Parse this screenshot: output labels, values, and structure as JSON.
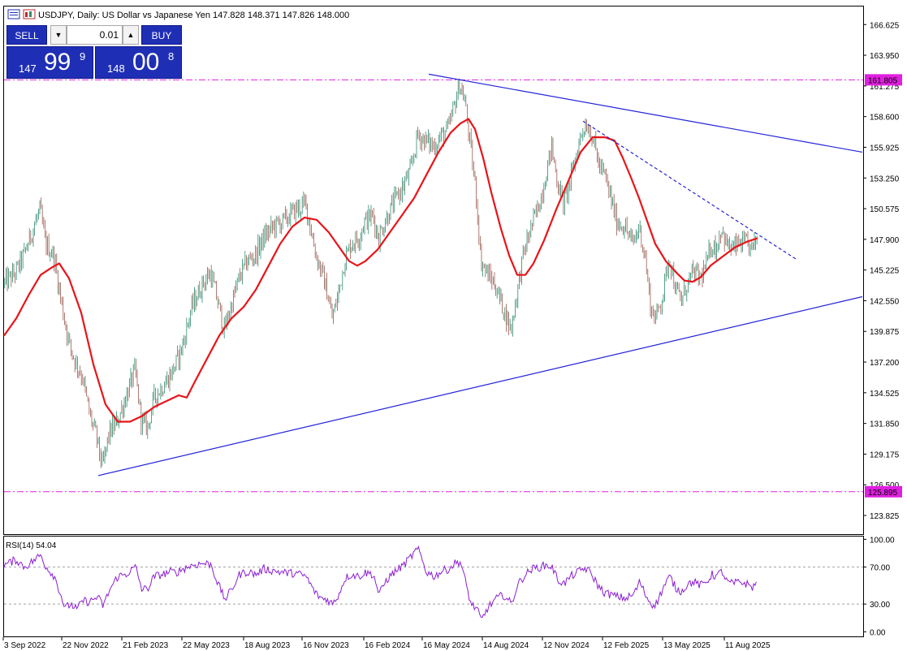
{
  "header": {
    "title": "USDJPY, Daily:  US Dollar vs Japanese Yen  147.828 148.371 147.826 148.000"
  },
  "trade_panel": {
    "sell_label": "SELL",
    "buy_label": "BUY",
    "lot": "0.01",
    "bid_prefix": "147",
    "bid_big": "99",
    "bid_sup": "9",
    "ask_prefix": "148",
    "ask_big": "00",
    "ask_sup": "8"
  },
  "colors": {
    "bull": "#2e8b6e",
    "bear": "#9a5a50",
    "ma": "#e8141a",
    "trend": "#2323d9",
    "level": "#e020e0",
    "rsi": "#8c1fd1"
  },
  "chart_data": [
    {
      "type": "candlestick",
      "symbol": "USDJPY",
      "timeframe": "Daily",
      "description": "US Dollar vs Japanese Yen",
      "last_ohlc": [
        147.828,
        148.371,
        147.826,
        148.0
      ],
      "ylim": [
        122.2,
        168.2
      ],
      "y_ticks": [
        "166.625",
        "163.950",
        "161.275",
        "158.600",
        "155.925",
        "153.250",
        "150.575",
        "147.900",
        "145.225",
        "142.550",
        "139.875",
        "137.200",
        "134.525",
        "131.850",
        "129.175",
        "126.500",
        "123.825"
      ],
      "x_ticks": [
        "3 Sep 2022",
        "22 Nov 2022",
        "21 Feb 2023",
        "22 May 2023",
        "18 Aug 2023",
        "16 Nov 2023",
        "16 Feb 2024",
        "16 May 2024",
        "14 Aug 2024",
        "12 Nov 2024",
        "12 Feb 2025",
        "13 May 2025",
        "11 Aug 2025"
      ],
      "price_path": [
        [
          0,
          144.0
        ],
        [
          15,
          145.0
        ],
        [
          25,
          146.5
        ],
        [
          35,
          148.5
        ],
        [
          45,
          150.5
        ],
        [
          52,
          147.5
        ],
        [
          62,
          146.5
        ],
        [
          70,
          143.0
        ],
        [
          75,
          141.0
        ],
        [
          82,
          138.5
        ],
        [
          90,
          137.0
        ],
        [
          97,
          136.0
        ],
        [
          105,
          133.0
        ],
        [
          115,
          130.5
        ],
        [
          122,
          128.0
        ],
        [
          130,
          131.0
        ],
        [
          140,
          132.0
        ],
        [
          150,
          134.0
        ],
        [
          162,
          136.5
        ],
        [
          170,
          132.0
        ],
        [
          178,
          131.5
        ],
        [
          185,
          134.0
        ],
        [
          195,
          135.0
        ],
        [
          205,
          136.0
        ],
        [
          212,
          137.0
        ],
        [
          220,
          138.5
        ],
        [
          232,
          142.0
        ],
        [
          245,
          144.0
        ],
        [
          255,
          145.0
        ],
        [
          262,
          143.0
        ],
        [
          272,
          140.0
        ],
        [
          280,
          142.0
        ],
        [
          290,
          144.5
        ],
        [
          300,
          146.0
        ],
        [
          310,
          146.5
        ],
        [
          320,
          148.0
        ],
        [
          332,
          149.0
        ],
        [
          345,
          149.5
        ],
        [
          360,
          150.5
        ],
        [
          372,
          151.0
        ],
        [
          378,
          149.0
        ],
        [
          385,
          146.5
        ],
        [
          392,
          145.0
        ],
        [
          398,
          143.5
        ],
        [
          405,
          141.0
        ],
        [
          412,
          143.0
        ],
        [
          420,
          146.0
        ],
        [
          428,
          147.5
        ],
        [
          437,
          148.0
        ],
        [
          445,
          149.5
        ],
        [
          455,
          150.0
        ],
        [
          462,
          148.0
        ],
        [
          470,
          149.5
        ],
        [
          480,
          151.0
        ],
        [
          492,
          152.5
        ],
        [
          502,
          154.0
        ],
        [
          510,
          157.0
        ],
        [
          520,
          156.5
        ],
        [
          530,
          156.0
        ],
        [
          540,
          157.0
        ],
        [
          548,
          157.5
        ],
        [
          555,
          159.5
        ],
        [
          562,
          161.5
        ],
        [
          568,
          160.0
        ],
        [
          575,
          156.0
        ],
        [
          582,
          152.0
        ],
        [
          588,
          146.0
        ],
        [
          595,
          145.0
        ],
        [
          605,
          144.0
        ],
        [
          615,
          142.0
        ],
        [
          625,
          140.0
        ],
        [
          632,
          143.0
        ],
        [
          640,
          146.5
        ],
        [
          650,
          149.0
        ],
        [
          660,
          151.0
        ],
        [
          668,
          153.5
        ],
        [
          675,
          156.0
        ],
        [
          682,
          153.0
        ],
        [
          690,
          151.0
        ],
        [
          698,
          153.0
        ],
        [
          706,
          155.5
        ],
        [
          713,
          157.5
        ],
        [
          718,
          158.0
        ],
        [
          725,
          157.0
        ],
        [
          733,
          154.5
        ],
        [
          740,
          153.5
        ],
        [
          748,
          151.5
        ],
        [
          755,
          149.5
        ],
        [
          765,
          149.0
        ],
        [
          775,
          147.5
        ],
        [
          783,
          149.0
        ],
        [
          790,
          146.5
        ],
        [
          797,
          142.0
        ],
        [
          803,
          141.0
        ],
        [
          812,
          143.0
        ],
        [
          820,
          146.5
        ],
        [
          828,
          143.5
        ],
        [
          835,
          142.5
        ],
        [
          842,
          144.0
        ],
        [
          850,
          145.0
        ],
        [
          858,
          144.5
        ],
        [
          865,
          145.5
        ],
        [
          872,
          147.5
        ],
        [
          878,
          147.0
        ],
        [
          884,
          149.0
        ],
        [
          890,
          147.5
        ],
        [
          898,
          147.0
        ],
        [
          906,
          147.5
        ],
        [
          914,
          147.5
        ],
        [
          922,
          147.0
        ],
        [
          928,
          148.0
        ]
      ],
      "moving_average": [
        [
          0,
          139.5
        ],
        [
          15,
          141.0
        ],
        [
          30,
          143.0
        ],
        [
          45,
          144.8
        ],
        [
          60,
          145.5
        ],
        [
          68,
          145.8
        ],
        [
          80,
          144.5
        ],
        [
          95,
          141.5
        ],
        [
          110,
          137.0
        ],
        [
          125,
          133.5
        ],
        [
          140,
          132.0
        ],
        [
          155,
          132.0
        ],
        [
          170,
          132.5
        ],
        [
          185,
          133.3
        ],
        [
          200,
          133.8
        ],
        [
          215,
          134.3
        ],
        [
          225,
          134.1
        ],
        [
          235,
          135.5
        ],
        [
          250,
          137.5
        ],
        [
          265,
          139.5
        ],
        [
          280,
          141.0
        ],
        [
          295,
          142.0
        ],
        [
          310,
          143.5
        ],
        [
          325,
          145.5
        ],
        [
          340,
          147.5
        ],
        [
          355,
          149.0
        ],
        [
          370,
          149.8
        ],
        [
          385,
          149.6
        ],
        [
          400,
          148.5
        ],
        [
          415,
          147.0
        ],
        [
          425,
          146.0
        ],
        [
          435,
          145.6
        ],
        [
          445,
          146.0
        ],
        [
          460,
          147.0
        ],
        [
          475,
          148.5
        ],
        [
          490,
          150.0
        ],
        [
          505,
          151.5
        ],
        [
          520,
          153.5
        ],
        [
          535,
          155.5
        ],
        [
          550,
          157.2
        ],
        [
          562,
          158.0
        ],
        [
          572,
          158.4
        ],
        [
          580,
          157.5
        ],
        [
          590,
          155.0
        ],
        [
          600,
          152.0
        ],
        [
          612,
          148.8
        ],
        [
          622,
          146.5
        ],
        [
          632,
          144.8
        ],
        [
          642,
          144.8
        ],
        [
          652,
          145.8
        ],
        [
          665,
          147.8
        ],
        [
          680,
          150.5
        ],
        [
          695,
          153.0
        ],
        [
          710,
          155.5
        ],
        [
          725,
          156.8
        ],
        [
          740,
          156.8
        ],
        [
          752,
          156.5
        ],
        [
          762,
          155.0
        ],
        [
          772,
          153.3
        ],
        [
          782,
          151.5
        ],
        [
          792,
          149.5
        ],
        [
          802,
          147.5
        ],
        [
          815,
          146.0
        ],
        [
          828,
          145.0
        ],
        [
          838,
          144.3
        ],
        [
          848,
          144.2
        ],
        [
          858,
          144.6
        ],
        [
          870,
          145.6
        ],
        [
          885,
          146.4
        ],
        [
          900,
          147.2
        ],
        [
          915,
          147.7
        ],
        [
          928,
          148.0
        ]
      ],
      "levels": [
        161.805,
        125.895
      ],
      "level_labels": [
        "161.805",
        "125.895"
      ],
      "trendlines": [
        {
          "style": "solid",
          "points": [
            [
              528,
              162.3
            ],
            [
              1062,
              155.5
            ]
          ]
        },
        {
          "style": "solid",
          "points": [
            [
              121,
              127.3
            ],
            [
              1062,
              142.9
            ]
          ]
        },
        {
          "style": "dashed",
          "points": [
            [
              718,
              158.2
            ],
            [
              982,
              146.1
            ]
          ]
        }
      ]
    },
    {
      "type": "line",
      "title": "RSI(14) 54.04",
      "ylim": [
        -5,
        103
      ],
      "y_ticks": [
        "100.00",
        "70.00",
        "30.00",
        "0.00"
      ],
      "levels": [
        70,
        30
      ],
      "rsi_path": [
        [
          0,
          72
        ],
        [
          15,
          78
        ],
        [
          25,
          70
        ],
        [
          35,
          76
        ],
        [
          45,
          83
        ],
        [
          52,
          70
        ],
        [
          62,
          60
        ],
        [
          70,
          40
        ],
        [
          75,
          25
        ],
        [
          82,
          30
        ],
        [
          90,
          24
        ],
        [
          97,
          34
        ],
        [
          105,
          32
        ],
        [
          115,
          38
        ],
        [
          122,
          28
        ],
        [
          130,
          45
        ],
        [
          140,
          60
        ],
        [
          150,
          62
        ],
        [
          162,
          70
        ],
        [
          170,
          45
        ],
        [
          178,
          48
        ],
        [
          185,
          60
        ],
        [
          195,
          62
        ],
        [
          205,
          65
        ],
        [
          212,
          64
        ],
        [
          220,
          68
        ],
        [
          232,
          72
        ],
        [
          245,
          74
        ],
        [
          255,
          73
        ],
        [
          262,
          55
        ],
        [
          272,
          35
        ],
        [
          280,
          45
        ],
        [
          290,
          62
        ],
        [
          300,
          65
        ],
        [
          310,
          62
        ],
        [
          320,
          68
        ],
        [
          332,
          66
        ],
        [
          345,
          64
        ],
        [
          360,
          63
        ],
        [
          372,
          60
        ],
        [
          378,
          50
        ],
        [
          385,
          40
        ],
        [
          392,
          36
        ],
        [
          398,
          35
        ],
        [
          405,
          30
        ],
        [
          412,
          40
        ],
        [
          420,
          58
        ],
        [
          428,
          62
        ],
        [
          437,
          60
        ],
        [
          445,
          64
        ],
        [
          455,
          62
        ],
        [
          462,
          40
        ],
        [
          470,
          55
        ],
        [
          480,
          64
        ],
        [
          492,
          72
        ],
        [
          502,
          82
        ],
        [
          510,
          90
        ],
        [
          520,
          65
        ],
        [
          530,
          60
        ],
        [
          540,
          66
        ],
        [
          548,
          68
        ],
        [
          555,
          74
        ],
        [
          562,
          76
        ],
        [
          568,
          55
        ],
        [
          575,
          30
        ],
        [
          582,
          25
        ],
        [
          588,
          12
        ],
        [
          595,
          25
        ],
        [
          605,
          35
        ],
        [
          615,
          40
        ],
        [
          625,
          30
        ],
        [
          632,
          50
        ],
        [
          640,
          60
        ],
        [
          650,
          68
        ],
        [
          660,
          70
        ],
        [
          668,
          72
        ],
        [
          675,
          70
        ],
        [
          682,
          56
        ],
        [
          690,
          52
        ],
        [
          698,
          60
        ],
        [
          706,
          64
        ],
        [
          713,
          68
        ],
        [
          718,
          68
        ],
        [
          725,
          60
        ],
        [
          733,
          48
        ],
        [
          740,
          42
        ],
        [
          748,
          40
        ],
        [
          755,
          38
        ],
        [
          765,
          36
        ],
        [
          775,
          40
        ],
        [
          783,
          54
        ],
        [
          790,
          40
        ],
        [
          797,
          30
        ],
        [
          803,
          30
        ],
        [
          812,
          48
        ],
        [
          820,
          60
        ],
        [
          828,
          46
        ],
        [
          835,
          44
        ],
        [
          842,
          52
        ],
        [
          850,
          54
        ],
        [
          858,
          50
        ],
        [
          865,
          54
        ],
        [
          872,
          62
        ],
        [
          878,
          60
        ],
        [
          884,
          66
        ],
        [
          890,
          54
        ],
        [
          898,
          52
        ],
        [
          906,
          54
        ],
        [
          914,
          52
        ],
        [
          922,
          48
        ],
        [
          928,
          54
        ]
      ]
    }
  ]
}
